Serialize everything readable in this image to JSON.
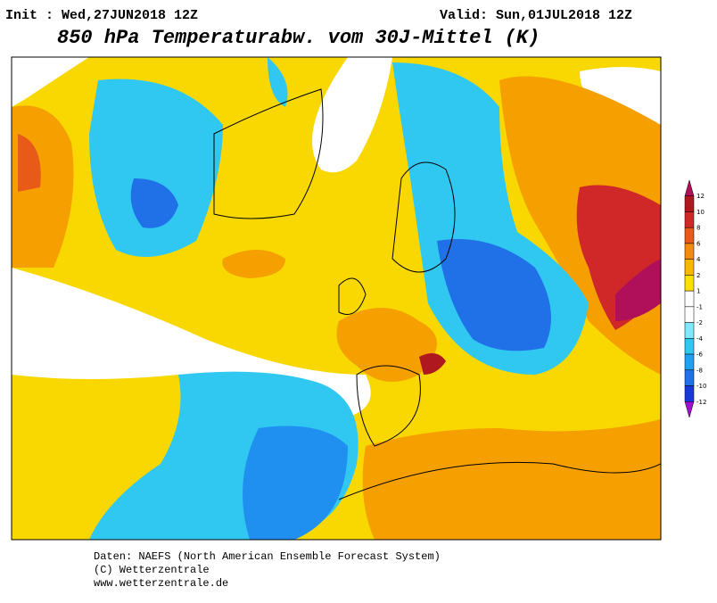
{
  "header": {
    "init": "Init : Wed,27JUN2018 12Z",
    "valid": "Valid: Sun,01JUL2018 12Z",
    "title": "850 hPa Temperaturabw. vom 30J-Mittel (K)"
  },
  "legend": {
    "labels": [
      12,
      10,
      8,
      6,
      4,
      2,
      1,
      -1,
      -2,
      -4,
      -6,
      -8,
      -10,
      -12
    ],
    "colors": [
      "#b0105a",
      "#b01820",
      "#d02828",
      "#e85a18",
      "#f58a10",
      "#f8b800",
      "#f8e000",
      "#ffffff",
      "#ffffff",
      "#80e8f8",
      "#30c8f0",
      "#20a0f0",
      "#2070e8",
      "#1838d8",
      "#a010d0"
    ]
  },
  "footer": {
    "lines": [
      "Daten: NAEFS (North American Ensemble Forecast System)",
      "(C) Wetterzentrale",
      "www.wetterzentrale.de"
    ]
  }
}
